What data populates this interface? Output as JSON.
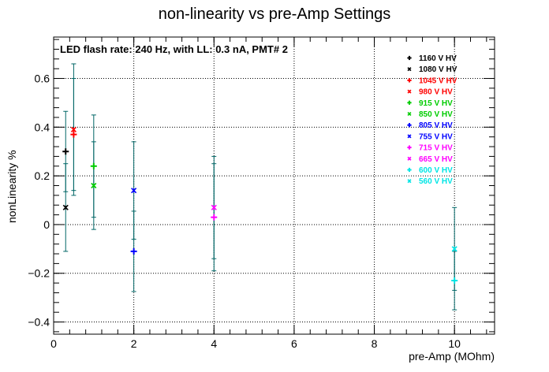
{
  "chart_data": {
    "type": "scatter",
    "title": "non-linearity vs pre-Amp Settings",
    "annotation": "LED flash rate: 240 Hz, with LL: 0.3 nA, PMT# 2",
    "xlabel": "pre-Amp (MOhm)",
    "ylabel": "nonLinearity %",
    "xlim": [
      0,
      11
    ],
    "ylim": [
      -0.45,
      0.77
    ],
    "x_ticks": [
      0,
      2,
      4,
      6,
      8,
      10
    ],
    "y_ticks": [
      -0.4,
      -0.2,
      0,
      0.2,
      0.4,
      0.6
    ],
    "grid": true,
    "legend_position": "top-right",
    "error_bar_color": "#006666",
    "series": [
      {
        "name": "1160 V HV",
        "marker": "plus",
        "color": "#000000",
        "x": 0.3,
        "y": 0.3,
        "err": 0.165
      },
      {
        "name": "1080 V HV",
        "marker": "star",
        "color": "#000000",
        "x": 0.3,
        "y": 0.07,
        "err": 0.18
      },
      {
        "name": "1045 V HV",
        "marker": "plus",
        "color": "#ff0000",
        "x": 0.5,
        "y": 0.37,
        "err": 0.23
      },
      {
        "name": "980 V HV",
        "marker": "star",
        "color": "#ff0000",
        "x": 0.5,
        "y": 0.39,
        "err": 0.27
      },
      {
        "name": "915 V HV",
        "marker": "plus",
        "color": "#00cc00",
        "x": 1.0,
        "y": 0.24,
        "err": 0.21
      },
      {
        "name": "850 V HV",
        "marker": "star",
        "color": "#00cc00",
        "x": 1.0,
        "y": 0.16,
        "err": 0.18
      },
      {
        "name": "805 V HV",
        "marker": "plus",
        "color": "#0000ff",
        "x": 2.0,
        "y": -0.11,
        "err": 0.165
      },
      {
        "name": "755 V HV",
        "marker": "star",
        "color": "#0000ff",
        "x": 2.0,
        "y": 0.14,
        "err": 0.2
      },
      {
        "name": "715 V HV",
        "marker": "plus",
        "color": "#ff00ff",
        "x": 4.0,
        "y": 0.03,
        "err": 0.22
      },
      {
        "name": "665 V HV",
        "marker": "star",
        "color": "#ff00ff",
        "x": 4.0,
        "y": 0.07,
        "err": 0.21
      },
      {
        "name": "600 V HV",
        "marker": "plus",
        "color": "#00e5e5",
        "x": 10.0,
        "y": -0.23,
        "err": 0.12
      },
      {
        "name": "560 V HV",
        "marker": "star",
        "color": "#00e5e5",
        "x": 10.0,
        "y": -0.1,
        "err": 0.17
      }
    ]
  }
}
